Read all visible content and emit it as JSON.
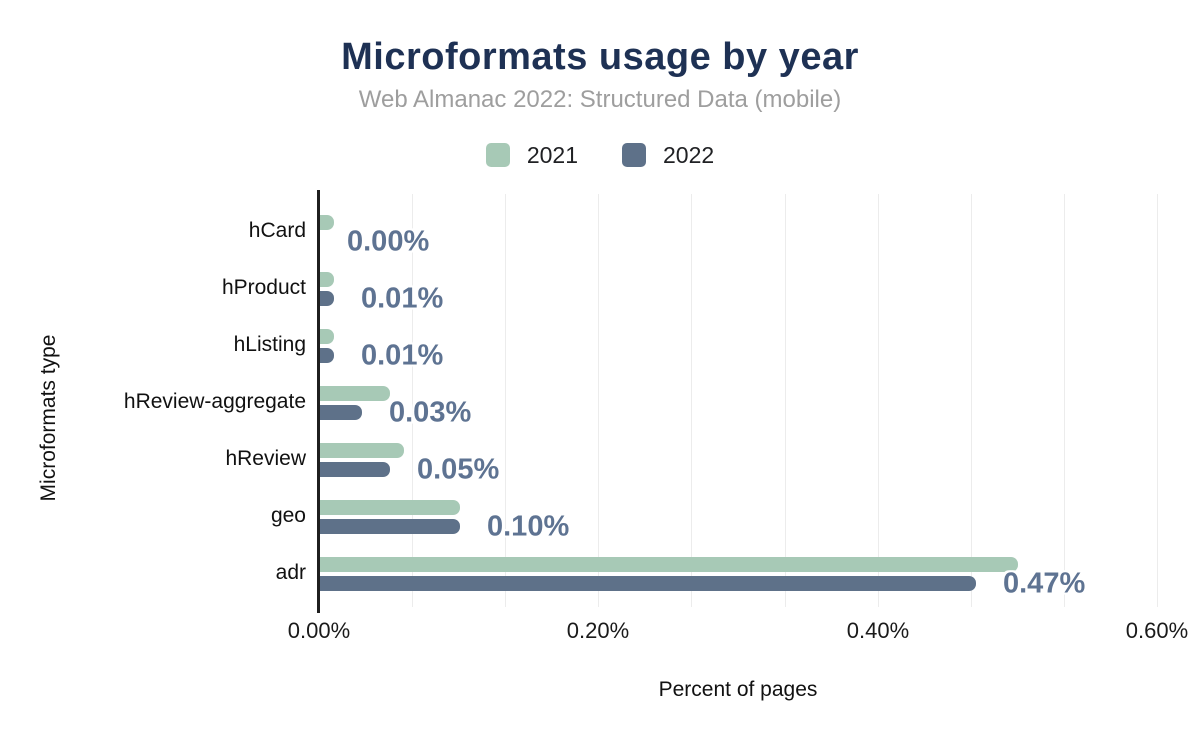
{
  "chart_data": {
    "type": "bar",
    "orientation": "horizontal",
    "title": "Microformats usage by year",
    "subtitle": "Web Almanac 2022: Structured Data (mobile)",
    "xlabel": "Percent of pages",
    "ylabel": "Microformats type",
    "categories": [
      "hCard",
      "hProduct",
      "hListing",
      "hReview-aggregate",
      "hReview",
      "geo",
      "adr"
    ],
    "series": [
      {
        "name": "2021",
        "color": "#a7c9b6",
        "values": [
          0.01,
          0.01,
          0.01,
          0.05,
          0.06,
          0.1,
          0.5
        ]
      },
      {
        "name": "2022",
        "color": "#5e7189",
        "values": [
          0.0,
          0.01,
          0.01,
          0.03,
          0.05,
          0.1,
          0.47
        ]
      }
    ],
    "data_labels": [
      "0.00%",
      "0.01%",
      "0.01%",
      "0.03%",
      "0.05%",
      "0.10%",
      "0.47%"
    ],
    "x_ticks": [
      {
        "value": 0.0,
        "label": "0.00%"
      },
      {
        "value": 0.2,
        "label": "0.20%"
      },
      {
        "value": 0.4,
        "label": "0.40%"
      },
      {
        "value": 0.6,
        "label": "0.60%"
      }
    ],
    "xlim": [
      0,
      0.6
    ],
    "grid": "vertical, minor gridlines every 0.0667%",
    "legend_position": "top-center"
  },
  "colors": {
    "title": "#1e3154",
    "subtitle": "#9e9e9e",
    "bar_2021": "#a7c9b6",
    "bar_2022": "#5e7189",
    "value_label": "#5e7392",
    "gridline": "#ececec",
    "axis_line": "#1f1f1f",
    "background": "#ffffff"
  }
}
